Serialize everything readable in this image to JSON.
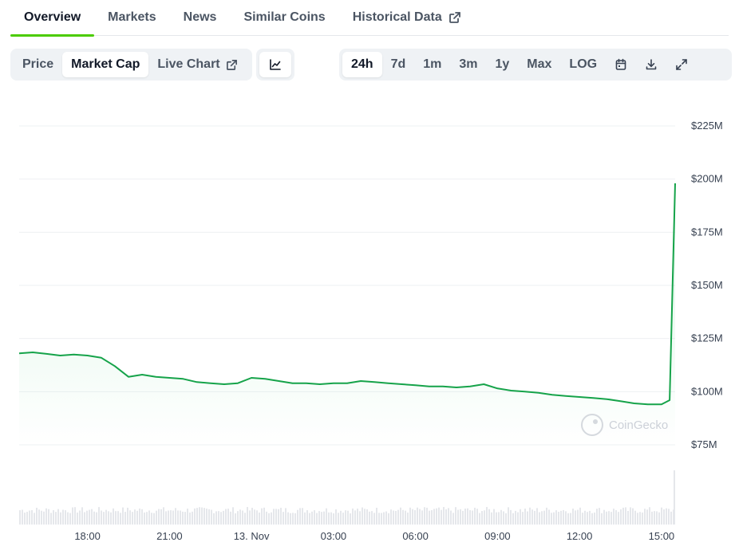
{
  "tabs": [
    {
      "label": "Overview",
      "active": true
    },
    {
      "label": "Markets",
      "active": false
    },
    {
      "label": "News",
      "active": false
    },
    {
      "label": "Similar Coins",
      "active": false
    },
    {
      "label": "Historical Data",
      "active": false,
      "external": true
    }
  ],
  "toolbar": {
    "view_tabs": [
      {
        "label": "Price",
        "active": false
      },
      {
        "label": "Market Cap",
        "active": true
      },
      {
        "label": "Live Chart",
        "active": false,
        "external": true
      }
    ],
    "chart_type_icon": "line-chart-icon",
    "ranges": [
      {
        "label": "24h",
        "active": true
      },
      {
        "label": "7d",
        "active": false
      },
      {
        "label": "1m",
        "active": false
      },
      {
        "label": "3m",
        "active": false
      },
      {
        "label": "1y",
        "active": false
      },
      {
        "label": "Max",
        "active": false
      },
      {
        "label": "LOG",
        "active": false
      }
    ],
    "tool_icons": [
      "calendar-icon",
      "download-icon",
      "expand-icon"
    ]
  },
  "watermark": "CoinGecko",
  "colors": {
    "line": "#16a34a",
    "accent": "#4bcc00",
    "area_fill": "#22c55e"
  },
  "chart_data": {
    "type": "area",
    "title": "",
    "xlabel": "",
    "ylabel": "",
    "x_ticks": [
      "18:00",
      "21:00",
      "13. Nov",
      "03:00",
      "06:00",
      "09:00",
      "12:00",
      "15:00"
    ],
    "y_ticks": [
      "$75M",
      "$100M",
      "$125M",
      "$150M",
      "$175M",
      "$200M",
      "$225M"
    ],
    "y_tick_values": [
      75,
      100,
      125,
      150,
      175,
      200,
      225
    ],
    "ylim": [
      75,
      225
    ],
    "y_unit": "USD millions",
    "grid": true,
    "series": [
      {
        "x_hours": [
          15.5,
          16,
          16.5,
          17,
          17.5,
          18,
          18.5,
          19,
          19.5,
          20,
          20.5,
          21,
          21.5,
          22,
          22.5,
          23,
          23.5,
          24,
          24.5,
          25,
          25.5,
          26,
          26.5,
          27,
          27.5,
          28,
          28.5,
          29,
          29.5,
          30,
          30.5,
          31,
          31.5,
          32,
          32.5,
          33,
          33.5,
          34,
          34.5,
          35,
          35.5,
          36,
          36.5,
          37,
          37.5,
          38,
          38.5,
          39,
          39.3,
          39.5
        ],
        "values": [
          118,
          118.5,
          117.8,
          117,
          117.5,
          117,
          116,
          112,
          107,
          108,
          107,
          106.5,
          106,
          104.5,
          104,
          103.5,
          104,
          106.5,
          106,
          105,
          104,
          104,
          103.5,
          104,
          104,
          105,
          104.5,
          104,
          103.5,
          103,
          102.5,
          102.5,
          102,
          102.5,
          103.5,
          101.5,
          100.5,
          100,
          99.5,
          98.5,
          98,
          97.5,
          97,
          96.5,
          95.5,
          94.5,
          94,
          94,
          96,
          198
        ]
      }
    ],
    "volume": "relative bars, values not labeled"
  }
}
